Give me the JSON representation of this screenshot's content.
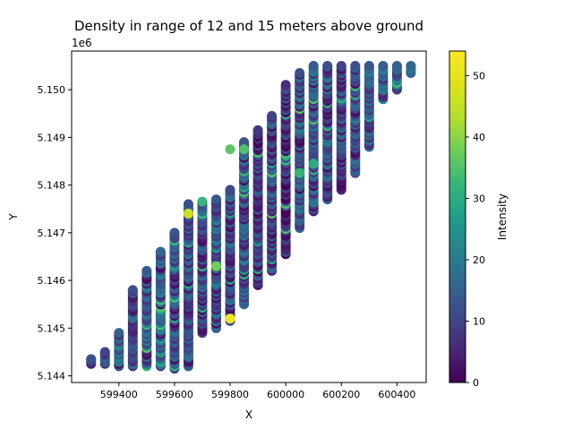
{
  "chart_data": {
    "type": "scatter",
    "title": "Density in range of 12 and 15 meters above ground",
    "xlabel": "X",
    "ylabel": "Y",
    "y_offset_label": "1e6",
    "xlim": [
      599230,
      600505
    ],
    "ylim": [
      5143860,
      5150810
    ],
    "x_ticks": [
      599400,
      599600,
      599800,
      600000,
      600200,
      600400
    ],
    "x_tick_labels": [
      "599400",
      "599600",
      "599800",
      "600000",
      "600200",
      "600400"
    ],
    "y_ticks": [
      5144000,
      5145000,
      5146000,
      5147000,
      5148000,
      5149000,
      5150000
    ],
    "y_tick_labels": [
      "5.144",
      "5.145",
      "5.146",
      "5.147",
      "5.148",
      "5.149",
      "5.150"
    ],
    "colorbar": {
      "label": "Intensity",
      "min": 0,
      "max": 54,
      "ticks": [
        0,
        10,
        20,
        30,
        40,
        50
      ],
      "tick_labels": [
        "0",
        "10",
        "20",
        "30",
        "40",
        "50"
      ],
      "colormap": "viridis"
    },
    "grid": false,
    "marker_color_by": "Intensity",
    "strips": [
      {
        "x": 599300,
        "y_min": 5144250,
        "y_max": 5144350,
        "dominant_intensity": 12
      },
      {
        "x": 599350,
        "y_min": 5144250,
        "y_max": 5144500,
        "dominant_intensity": 10
      },
      {
        "x": 599400,
        "y_min": 5144200,
        "y_max": 5144900,
        "dominant_intensity": 15
      },
      {
        "x": 599450,
        "y_min": 5144200,
        "y_max": 5145800,
        "dominant_intensity": 12
      },
      {
        "x": 599500,
        "y_min": 5144200,
        "y_max": 5146200,
        "dominant_intensity": 14
      },
      {
        "x": 599550,
        "y_min": 5144200,
        "y_max": 5146600,
        "dominant_intensity": 16
      },
      {
        "x": 599600,
        "y_min": 5144150,
        "y_max": 5147000,
        "dominant_intensity": 13
      },
      {
        "x": 599650,
        "y_min": 5144200,
        "y_max": 5147600,
        "dominant_intensity": 12
      },
      {
        "x": 599700,
        "y_min": 5144900,
        "y_max": 5147650,
        "dominant_intensity": 10
      },
      {
        "x": 599750,
        "y_min": 5145000,
        "y_max": 5147700,
        "dominant_intensity": 14
      },
      {
        "x": 599800,
        "y_min": 5145150,
        "y_max": 5147900,
        "dominant_intensity": 11
      },
      {
        "x": 599850,
        "y_min": 5145500,
        "y_max": 5148900,
        "dominant_intensity": 13
      },
      {
        "x": 599900,
        "y_min": 5145900,
        "y_max": 5149150,
        "dominant_intensity": 8
      },
      {
        "x": 599950,
        "y_min": 5146200,
        "y_max": 5149450,
        "dominant_intensity": 10
      },
      {
        "x": 600000,
        "y_min": 5146550,
        "y_max": 5150100,
        "dominant_intensity": 6
      },
      {
        "x": 600050,
        "y_min": 5147100,
        "y_max": 5150350,
        "dominant_intensity": 12
      },
      {
        "x": 600100,
        "y_min": 5147450,
        "y_max": 5150500,
        "dominant_intensity": 14
      },
      {
        "x": 600150,
        "y_min": 5147700,
        "y_max": 5150500,
        "dominant_intensity": 12
      },
      {
        "x": 600200,
        "y_min": 5147900,
        "y_max": 5150500,
        "dominant_intensity": 10
      },
      {
        "x": 600250,
        "y_min": 5148250,
        "y_max": 5150500,
        "dominant_intensity": 12
      },
      {
        "x": 600300,
        "y_min": 5148800,
        "y_max": 5150500,
        "dominant_intensity": 13
      },
      {
        "x": 600350,
        "y_min": 5149800,
        "y_max": 5150500,
        "dominant_intensity": 14
      },
      {
        "x": 600400,
        "y_min": 5150000,
        "y_max": 5150500,
        "dominant_intensity": 15
      },
      {
        "x": 600450,
        "y_min": 5150350,
        "y_max": 5150500,
        "dominant_intensity": 16
      }
    ],
    "notable_points": [
      {
        "x": 599800,
        "y": 5145200,
        "intensity": 52
      },
      {
        "x": 599650,
        "y": 5147400,
        "intensity": 46
      },
      {
        "x": 599850,
        "y": 5148750,
        "intensity": 35
      },
      {
        "x": 599800,
        "y": 5148750,
        "intensity": 36
      },
      {
        "x": 599700,
        "y": 5147650,
        "intensity": 32
      },
      {
        "x": 600050,
        "y": 5148250,
        "intensity": 32
      },
      {
        "x": 599750,
        "y": 5146300,
        "intensity": 38
      },
      {
        "x": 600100,
        "y": 5148450,
        "intensity": 30
      }
    ]
  }
}
